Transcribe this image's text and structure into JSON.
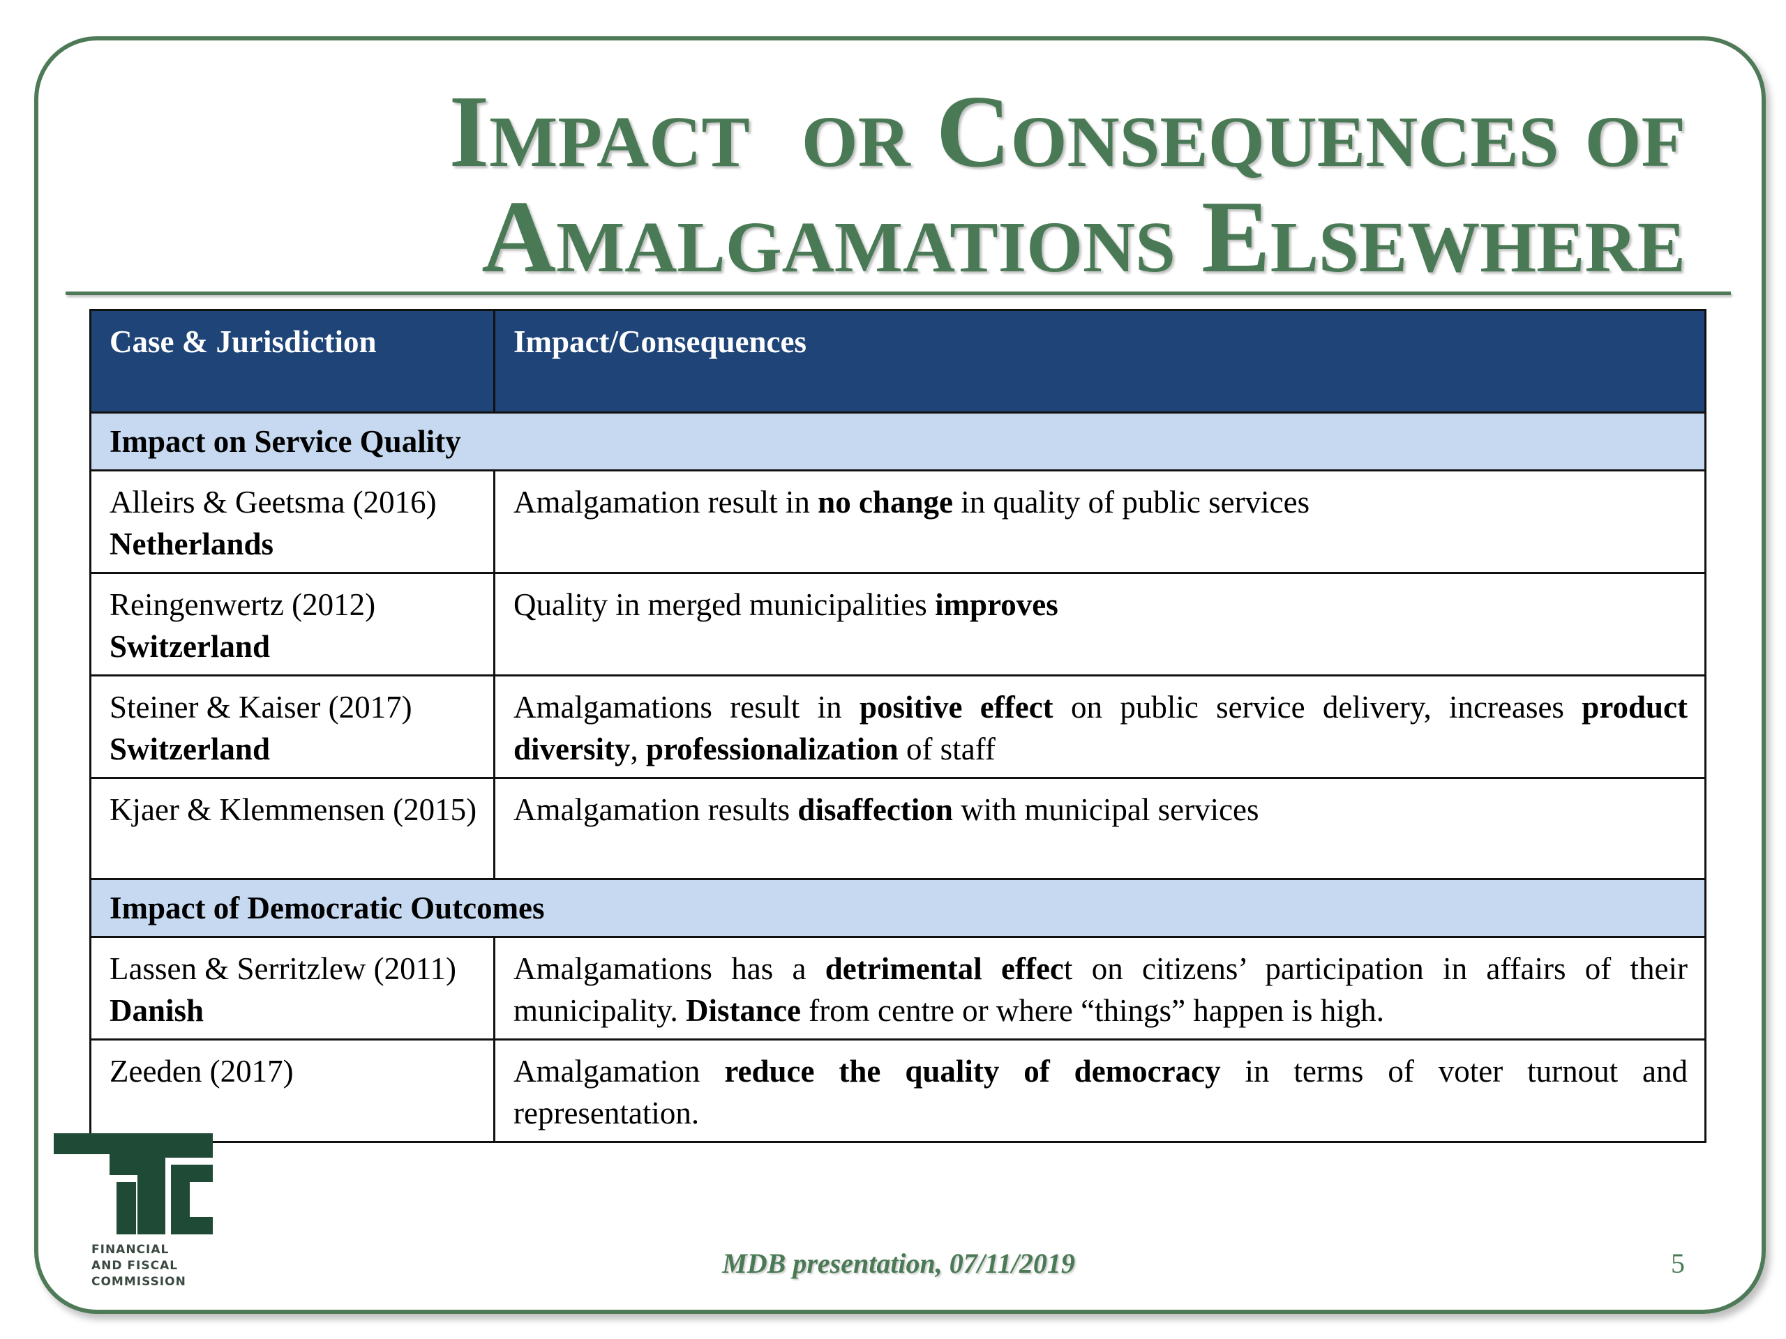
{
  "title": {
    "lines": [
      "Impact  or Consequences of",
      "Amalgamations Elsewhere"
    ]
  },
  "table": {
    "header": [
      "Case & Jurisdiction",
      "Impact/Consequences"
    ],
    "rows": [
      [
        [
          {
            "text": "Impact on Service Quality",
            "bold": true
          }
        ]
      ],
      [
        [
          {
            "text": "Alleirs & Geetsma (2016) ",
            "bold": false
          },
          {
            "text": "Netherlands",
            "bold": true
          }
        ],
        [
          {
            "text": "Amalgamation result in ",
            "bold": false
          },
          {
            "text": "no change",
            "bold": true
          },
          {
            "text": " in quality of public services",
            "bold": false
          }
        ]
      ],
      [
        [
          {
            "text": "Reingenwertz (2012) ",
            "bold": false
          },
          {
            "text": "Switzerland",
            "bold": true
          }
        ],
        [
          {
            "text": "Quality in merged municipalities ",
            "bold": false
          },
          {
            "text": "improves",
            "bold": true
          }
        ]
      ],
      [
        [
          {
            "text": "Steiner & Kaiser (2017) ",
            "bold": false
          },
          {
            "text": "Switzerland",
            "bold": true
          }
        ],
        [
          {
            "text": "Amalgamations result in ",
            "bold": false
          },
          {
            "text": "positive effect",
            "bold": true
          },
          {
            "text": " on public service delivery, increases ",
            "bold": false
          },
          {
            "text": "product diversity",
            "bold": true
          },
          {
            "text": ", ",
            "bold": false
          },
          {
            "text": "professionalization",
            "bold": true
          },
          {
            "text": " of staff",
            "bold": false
          }
        ]
      ],
      [
        [
          {
            "text": "Kjaer & Klemmensen (2015)",
            "bold": false
          }
        ],
        [
          {
            "text": "Amalgamation results ",
            "bold": false
          },
          {
            "text": "disaffection",
            "bold": true
          },
          {
            "text": " with municipal services",
            "bold": false
          }
        ]
      ],
      [
        [
          {
            "text": "Impact of Democratic Outcomes",
            "bold": true
          }
        ]
      ],
      [
        [
          {
            "text": "Lassen & Serritzlew (2011) ",
            "bold": false
          },
          {
            "text": "Danish",
            "bold": true
          }
        ],
        [
          {
            "text": "Amalgamations has a ",
            "bold": false
          },
          {
            "text": "detrimental effec",
            "bold": true
          },
          {
            "text": "t on citizens’ participation in affairs of their municipality. ",
            "bold": false
          },
          {
            "text": "Distance",
            "bold": true
          },
          {
            "text": " from centre or where “things” happen is high.",
            "bold": false
          }
        ]
      ],
      [
        [
          {
            "text": "Zeeden (2017)",
            "bold": false
          }
        ],
        [
          {
            "text": "Amalgamation ",
            "bold": false
          },
          {
            "text": "reduce the quality of democracy",
            "bold": true
          },
          {
            "text": " in terms of voter turnout and representation.",
            "bold": false
          }
        ]
      ]
    ]
  },
  "logo": {
    "lines": [
      "FINANCIAL",
      "AND FISCAL",
      "COMMISSION"
    ]
  },
  "footer": {
    "text": "MDB presentation, 07/11/2019",
    "page": 5
  }
}
